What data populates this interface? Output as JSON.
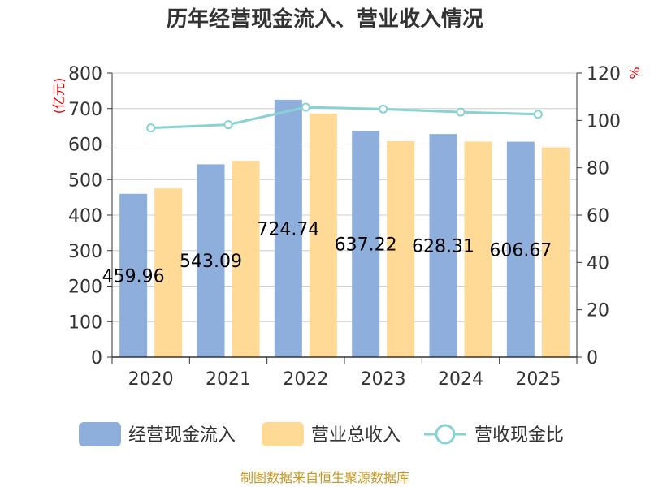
{
  "chart_data": {
    "type": "bar",
    "title": "历年经营现金流入、营业收入情况",
    "categories": [
      "2020",
      "2021",
      "2022",
      "2023",
      "2024",
      "2025"
    ],
    "series": [
      {
        "name": "经营现金流入",
        "type": "bar",
        "axis": "left",
        "color": "#8eaedb",
        "values": [
          459.96,
          543.09,
          724.74,
          637.22,
          628.31,
          606.67
        ],
        "labels": [
          "459.96",
          "543.09",
          "724.74",
          "637.22",
          "628.31",
          "606.67"
        ]
      },
      {
        "name": "营业总收入",
        "type": "bar",
        "axis": "left",
        "color": "#ffd996",
        "values": [
          475,
          553,
          686,
          608,
          607,
          591
        ]
      },
      {
        "name": "营收现金比",
        "type": "line",
        "axis": "right",
        "color": "#88d2d4",
        "values": [
          96.8,
          98.2,
          105.6,
          104.8,
          103.5,
          102.6
        ]
      }
    ],
    "y_left": {
      "label": "(亿元)",
      "ylim": [
        0,
        800
      ],
      "ticks": [
        0,
        100,
        200,
        300,
        400,
        500,
        600,
        700,
        800
      ]
    },
    "y_right": {
      "label": "%",
      "ylim": [
        0,
        120
      ],
      "ticks": [
        0,
        20,
        40,
        60,
        80,
        100,
        120
      ]
    },
    "grid": true,
    "legend_position": "bottom"
  },
  "source": "制图数据来自恒生聚源数据库"
}
